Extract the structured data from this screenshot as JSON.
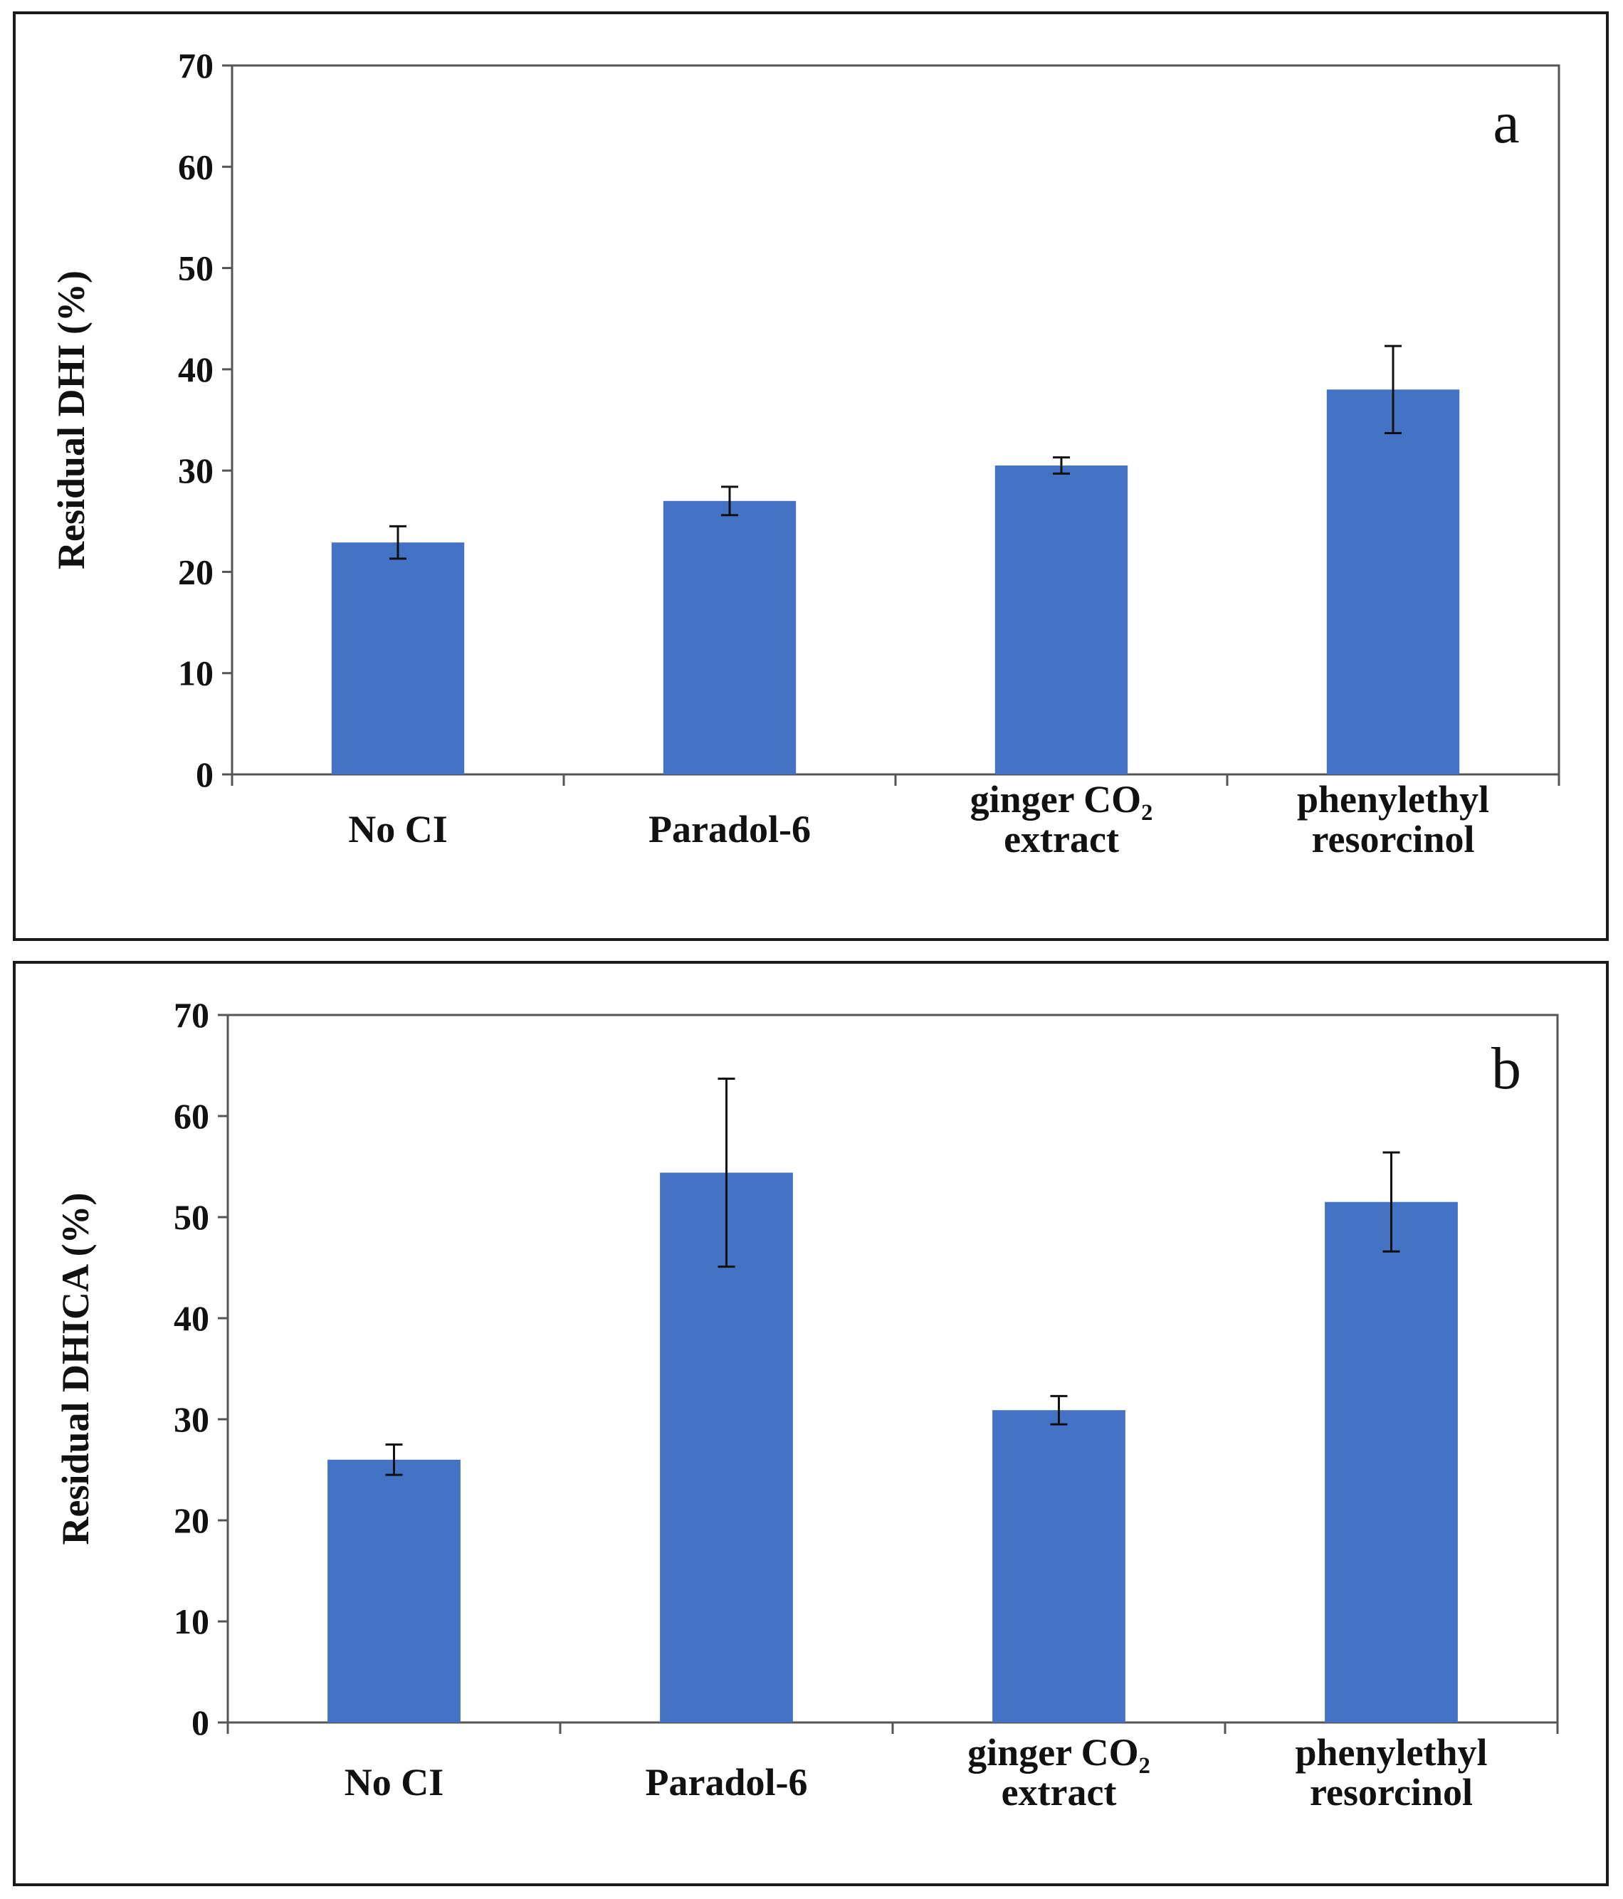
{
  "colors": {
    "bar": "#4472C4",
    "axis": "#555555",
    "text": "#111111"
  },
  "chart_data": [
    {
      "type": "bar",
      "panel_label": "a",
      "categories": [
        [
          "No CI"
        ],
        [
          "Paradol-6"
        ],
        [
          "ginger CO₂",
          "extract"
        ],
        [
          "phenylethyl",
          "resorcinol"
        ]
      ],
      "values": [
        22.9,
        27.0,
        30.5,
        38.0
      ],
      "errors": [
        1.6,
        1.4,
        0.8,
        4.3
      ],
      "ylabel": "Residual DHI (%)",
      "ylim": [
        0,
        70
      ],
      "yticks": [
        0,
        10,
        20,
        30,
        40,
        50,
        60,
        70
      ],
      "grid": false,
      "legend": "none"
    },
    {
      "type": "bar",
      "panel_label": "b",
      "categories": [
        [
          "No CI"
        ],
        [
          "Paradol-6"
        ],
        [
          "ginger CO₂",
          "extract"
        ],
        [
          "phenylethyl",
          "resorcinol"
        ]
      ],
      "values": [
        26.0,
        54.4,
        30.9,
        51.5
      ],
      "errors": [
        1.5,
        9.3,
        1.4,
        4.9
      ],
      "ylabel": "Residual DHICA (%)",
      "ylim": [
        0,
        70
      ],
      "yticks": [
        0,
        10,
        20,
        30,
        40,
        50,
        60,
        70
      ],
      "grid": false,
      "legend": "none"
    }
  ]
}
